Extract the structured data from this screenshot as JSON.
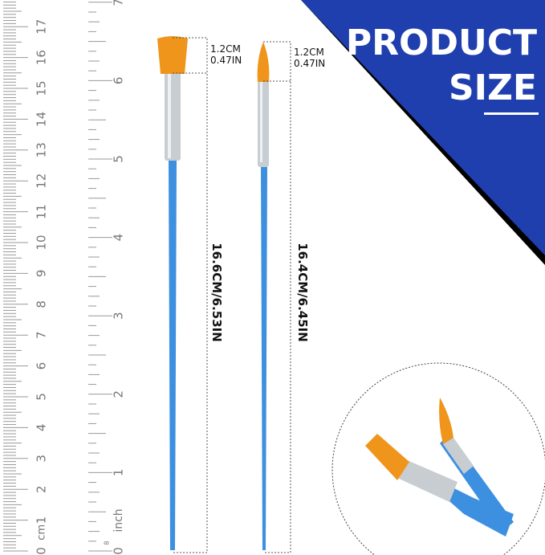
{
  "banner": {
    "line1": "PRODUCT",
    "line2": "SIZE",
    "color": "#1f3fae"
  },
  "ruler": {
    "cm_unit": "cm",
    "inch_unit": "inch",
    "cm_labels": [
      "0",
      "1",
      "2",
      "3",
      "4",
      "5",
      "6",
      "7",
      "8",
      "9",
      "10",
      "11",
      "12",
      "13",
      "14",
      "15",
      "16",
      "17"
    ],
    "inch_labels": [
      "0",
      "1",
      "2",
      "3",
      "4",
      "5",
      "6",
      "7"
    ],
    "inch_eighth_label": "8"
  },
  "brushes": [
    {
      "name": "flat",
      "tip_cm": "1.2CM",
      "tip_in": "0.47IN",
      "length": "16.6CM/6.53IN"
    },
    {
      "name": "round",
      "tip_cm": "1.2CM",
      "tip_in": "0.47IN",
      "length": "16.4CM/6.45IN"
    }
  ],
  "colors": {
    "handle": "#3d8fe0",
    "bristle": "#f0951c",
    "ferrule": "#c8cdd2",
    "banner": "#1f3fae"
  }
}
